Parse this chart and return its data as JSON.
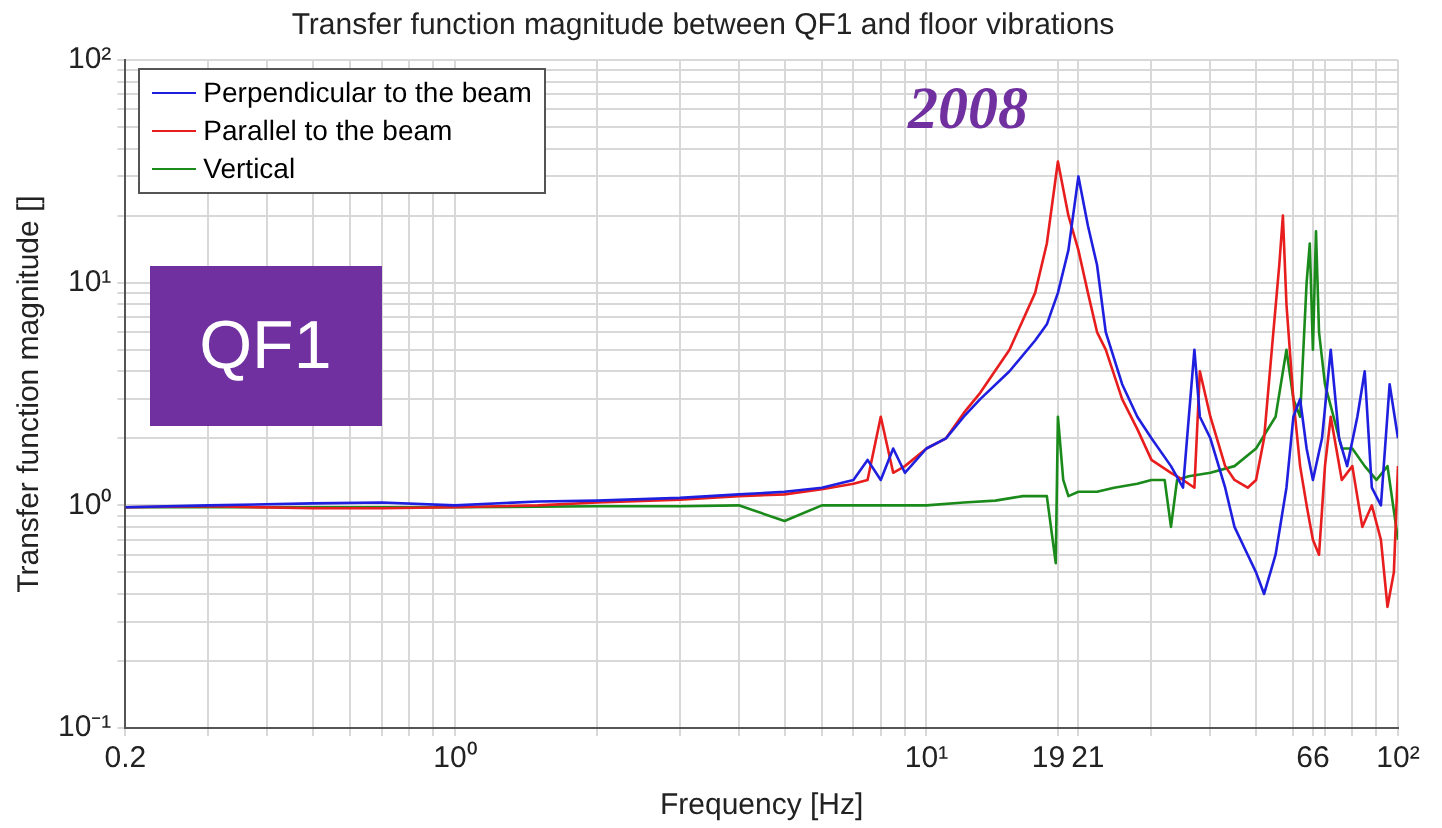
{
  "chart_data": {
    "type": "line",
    "title": "Transfer function magnitude between QF1 and floor vibrations",
    "xlabel": "Frequency [Hz]",
    "ylabel": "Transfer function magnitude []",
    "log": "xy",
    "grid": true,
    "legend": "top left",
    "xlim": [
      0.2,
      100
    ],
    "ylim": [
      0.1,
      100
    ],
    "xticks": [
      0.2,
      {
        "value": 0.3,
        "label": null
      },
      {
        "value": 0.4,
        "label": null
      },
      {
        "value": 0.5,
        "label": null
      },
      {
        "value": 0.6,
        "label": null
      },
      {
        "value": 0.7,
        "label": null
      },
      {
        "value": 0.8,
        "label": null
      },
      {
        "value": 0.9,
        "label": null
      },
      {
        "value": 1,
        "label": "10⁰"
      },
      {
        "value": 2,
        "label": null
      },
      {
        "value": 3,
        "label": null
      },
      {
        "value": 4,
        "label": null
      },
      {
        "value": 5,
        "label": null
      },
      {
        "value": 6,
        "label": null
      },
      {
        "value": 7,
        "label": null
      },
      {
        "value": 8,
        "label": null
      },
      {
        "value": 9,
        "label": null
      },
      {
        "value": 10,
        "label": "10¹"
      },
      19,
      21,
      {
        "value": 30,
        "label": null
      },
      {
        "value": 40,
        "label": null
      },
      {
        "value": 50,
        "label": null
      },
      {
        "value": 60,
        "label": null
      },
      66,
      {
        "value": 70,
        "label": null
      },
      {
        "value": 80,
        "label": null
      },
      {
        "value": 90,
        "label": null
      },
      {
        "value": 100,
        "label": "10²"
      }
    ],
    "yticks": [
      {
        "value": 0.1,
        "label": "10⁻¹"
      },
      {
        "value": 0.2,
        "label": null
      },
      {
        "value": 0.3,
        "label": null
      },
      {
        "value": 0.4,
        "label": null
      },
      {
        "value": 0.5,
        "label": null
      },
      {
        "value": 0.6,
        "label": null
      },
      {
        "value": 0.7,
        "label": null
      },
      {
        "value": 0.8,
        "label": null
      },
      {
        "value": 0.9,
        "label": null
      },
      {
        "value": 1,
        "label": "10⁰"
      },
      {
        "value": 2,
        "label": null
      },
      {
        "value": 3,
        "label": null
      },
      {
        "value": 4,
        "label": null
      },
      {
        "value": 5,
        "label": null
      },
      {
        "value": 6,
        "label": null
      },
      {
        "value": 7,
        "label": null
      },
      {
        "value": 8,
        "label": null
      },
      {
        "value": 9,
        "label": null
      },
      {
        "value": 10,
        "label": "10¹"
      },
      {
        "value": 20,
        "label": null
      },
      {
        "value": 30,
        "label": null
      },
      {
        "value": 40,
        "label": null
      },
      {
        "value": 50,
        "label": null
      },
      {
        "value": 60,
        "label": null
      },
      {
        "value": 70,
        "label": null
      },
      {
        "value": 80,
        "label": null
      },
      {
        "value": 90,
        "label": null
      },
      {
        "value": 100,
        "label": "10²"
      }
    ],
    "annotations": [
      "QF1",
      "2008"
    ],
    "series": [
      {
        "name": "Perpendicular to the beam",
        "color": "#1f1fe0",
        "x": [
          0.2,
          0.3,
          0.5,
          0.7,
          1,
          1.5,
          2,
          3,
          4,
          5,
          6,
          7,
          7.5,
          8,
          8.5,
          9,
          10,
          11,
          12,
          13,
          15,
          17,
          18,
          19,
          20,
          21,
          22,
          23,
          24,
          26,
          28,
          30,
          33,
          35,
          37,
          38,
          40,
          43,
          45,
          48,
          50,
          52,
          55,
          58,
          60,
          62,
          64,
          66,
          69,
          72,
          75,
          78,
          82,
          85,
          88,
          92,
          96,
          100
        ],
        "values": [
          0.98,
          1.0,
          1.02,
          1.03,
          1.0,
          1.04,
          1.05,
          1.08,
          1.12,
          1.15,
          1.2,
          1.3,
          1.6,
          1.3,
          1.8,
          1.4,
          1.8,
          2.0,
          2.5,
          3.0,
          4.0,
          5.5,
          6.5,
          9,
          14,
          30,
          18,
          12,
          6,
          3.5,
          2.5,
          2.0,
          1.5,
          1.2,
          5,
          2.5,
          2.0,
          1.2,
          0.8,
          0.6,
          0.5,
          0.4,
          0.6,
          1.2,
          2.5,
          3.0,
          1.8,
          1.3,
          2.0,
          5,
          2.0,
          1.5,
          2.5,
          4.0,
          1.2,
          1.0,
          3.5,
          2.0
        ]
      },
      {
        "name": "Parallel to the beam",
        "color": "#e81d1d",
        "x": [
          0.2,
          0.3,
          0.5,
          0.7,
          1,
          1.5,
          2,
          3,
          4,
          5,
          6,
          7,
          7.5,
          8,
          8.5,
          9,
          10,
          11,
          12,
          13,
          15,
          17,
          18,
          19,
          20,
          21,
          22,
          23,
          24,
          26,
          28,
          30,
          33,
          35,
          37,
          38,
          40,
          43,
          45,
          48,
          50,
          52,
          54,
          56,
          57,
          58,
          60,
          62,
          64,
          66,
          68,
          70,
          72,
          76,
          80,
          84,
          88,
          92,
          95,
          98,
          100
        ],
        "values": [
          0.98,
          0.99,
          0.97,
          0.97,
          0.98,
          1.0,
          1.03,
          1.06,
          1.1,
          1.12,
          1.18,
          1.25,
          1.3,
          2.5,
          1.4,
          1.5,
          1.8,
          2.0,
          2.6,
          3.2,
          5.0,
          9,
          15,
          35,
          20,
          14,
          9,
          6,
          5,
          3.0,
          2.2,
          1.6,
          1.4,
          1.3,
          1.2,
          4.0,
          2.5,
          1.5,
          1.3,
          1.2,
          1.3,
          2.0,
          5,
          12,
          20,
          8,
          3.0,
          1.5,
          1.0,
          0.7,
          0.6,
          1.5,
          2.5,
          1.3,
          1.5,
          0.8,
          1.0,
          0.7,
          0.35,
          0.5,
          1.5
        ]
      },
      {
        "name": "Vertical",
        "color": "#1a8a1a",
        "x": [
          0.2,
          0.5,
          1,
          2,
          3,
          4,
          5,
          6,
          7,
          8,
          9,
          10,
          12,
          14,
          16,
          18,
          18.8,
          19,
          19.5,
          20,
          21,
          23,
          25,
          28,
          30,
          32,
          33,
          34,
          36,
          40,
          45,
          50,
          55,
          58,
          60,
          62,
          64,
          65,
          66,
          67,
          68,
          70,
          73,
          76,
          80,
          85,
          90,
          95,
          100
        ],
        "values": [
          0.98,
          0.98,
          0.98,
          0.99,
          0.99,
          1.0,
          0.85,
          1.0,
          1.0,
          1.0,
          1.0,
          1.0,
          1.03,
          1.05,
          1.1,
          1.1,
          0.55,
          2.5,
          1.3,
          1.1,
          1.15,
          1.15,
          1.2,
          1.25,
          1.3,
          1.3,
          0.8,
          1.3,
          1.35,
          1.4,
          1.5,
          1.8,
          2.5,
          5,
          3.0,
          2.5,
          10,
          15,
          5,
          17,
          6,
          3.5,
          2.5,
          1.8,
          1.8,
          1.5,
          1.3,
          1.5,
          0.7
        ]
      }
    ]
  }
}
